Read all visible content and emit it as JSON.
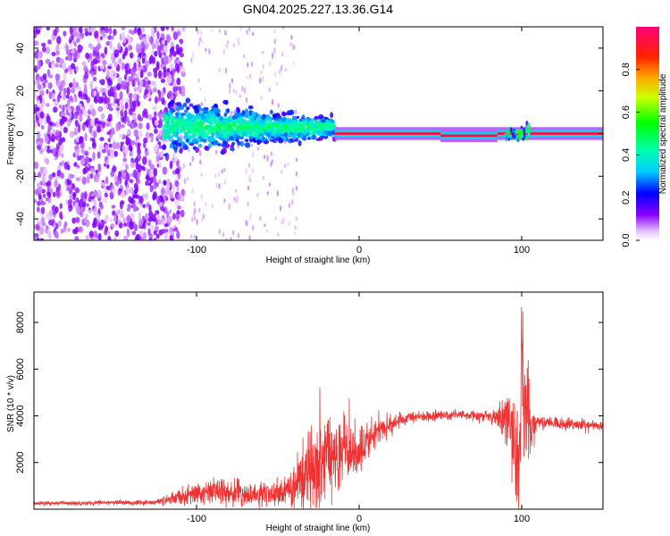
{
  "title": "GN04.2025.227.13.36.G14",
  "chart_data": [
    {
      "type": "heatmap",
      "xlabel": "Height of straight line (km)",
      "ylabel": "Frequency (Hz)",
      "xlim": [
        -200,
        150
      ],
      "ylim": [
        -50,
        50
      ],
      "x_ticks": [
        {
          "v": -100,
          "label": "-100"
        },
        {
          "v": 0,
          "label": "0"
        },
        {
          "v": 100,
          "label": "100"
        }
      ],
      "y_ticks": [
        {
          "v": -40,
          "label": "-40"
        },
        {
          "v": -20,
          "label": "-20"
        },
        {
          "v": 0,
          "label": "0"
        },
        {
          "v": 20,
          "label": "20"
        },
        {
          "v": 40,
          "label": "40"
        }
      ],
      "colorbar": {
        "label": "Normalized spectral amplitude",
        "range": [
          0,
          1
        ],
        "ticks": [
          {
            "v": 0,
            "label": "0.0"
          },
          {
            "v": 0.2,
            "label": "0.2"
          },
          {
            "v": 0.4,
            "label": "0.4"
          },
          {
            "v": 0.6,
            "label": "0.6"
          },
          {
            "v": 0.8,
            "label": "0.8"
          }
        ]
      },
      "features": [
        {
          "x_range": [
            -200,
            -108
          ],
          "f_range": [
            -50,
            50
          ],
          "amplitude": 0.1
        },
        {
          "x_range": [
            -120,
            -15
          ],
          "f_center": 3,
          "half_width_start": 12,
          "half_width_end": 5,
          "amplitude": 0.3
        },
        {
          "x_range": [
            -15,
            150
          ],
          "f_center": 0,
          "half_width": 1,
          "amplitude": 0.95
        },
        {
          "x_range": [
            50,
            85
          ],
          "f_center": -1,
          "half_width": 1,
          "amplitude": 0.95
        },
        {
          "x_range": [
            90,
            105
          ],
          "f_center": 0,
          "half_width": 4,
          "amplitude": 0.5
        }
      ]
    },
    {
      "type": "line",
      "xlabel": "Height of straight line (km)",
      "ylabel": "SNR (10 * v/v)",
      "xlim": [
        -200,
        150
      ],
      "ylim": [
        0,
        9300
      ],
      "color": "#ee3333",
      "x_ticks": [
        {
          "v": -100,
          "label": "-100"
        },
        {
          "v": 0,
          "label": "0"
        },
        {
          "v": 100,
          "label": "100"
        }
      ],
      "y_ticks": [
        {
          "v": 2000,
          "label": "2000"
        },
        {
          "v": 4000,
          "label": "4000"
        },
        {
          "v": 6000,
          "label": "6000"
        },
        {
          "v": 8000,
          "label": "8000"
        }
      ],
      "envelope": [
        {
          "x": -200,
          "mean": 250,
          "spread": 80
        },
        {
          "x": -125,
          "mean": 300,
          "spread": 120
        },
        {
          "x": -105,
          "mean": 600,
          "spread": 400
        },
        {
          "x": -85,
          "mean": 800,
          "spread": 600
        },
        {
          "x": -70,
          "mean": 600,
          "spread": 500
        },
        {
          "x": -45,
          "mean": 700,
          "spread": 600
        },
        {
          "x": -30,
          "mean": 2000,
          "spread": 2200
        },
        {
          "x": -15,
          "mean": 2500,
          "spread": 1800
        },
        {
          "x": 0,
          "mean": 2500,
          "spread": 1200
        },
        {
          "x": 15,
          "mean": 3500,
          "spread": 500
        },
        {
          "x": 30,
          "mean": 3950,
          "spread": 250
        },
        {
          "x": 60,
          "mean": 4050,
          "spread": 200
        },
        {
          "x": 85,
          "mean": 3950,
          "spread": 300
        },
        {
          "x": 92,
          "mean": 3700,
          "spread": 2000
        },
        {
          "x": 97,
          "mean": 1500,
          "spread": 2500
        },
        {
          "x": 100,
          "mean": 6000,
          "spread": 3500
        },
        {
          "x": 105,
          "mean": 3600,
          "spread": 1800
        },
        {
          "x": 110,
          "mean": 3750,
          "spread": 250
        },
        {
          "x": 150,
          "mean": 3550,
          "spread": 250
        }
      ]
    }
  ]
}
